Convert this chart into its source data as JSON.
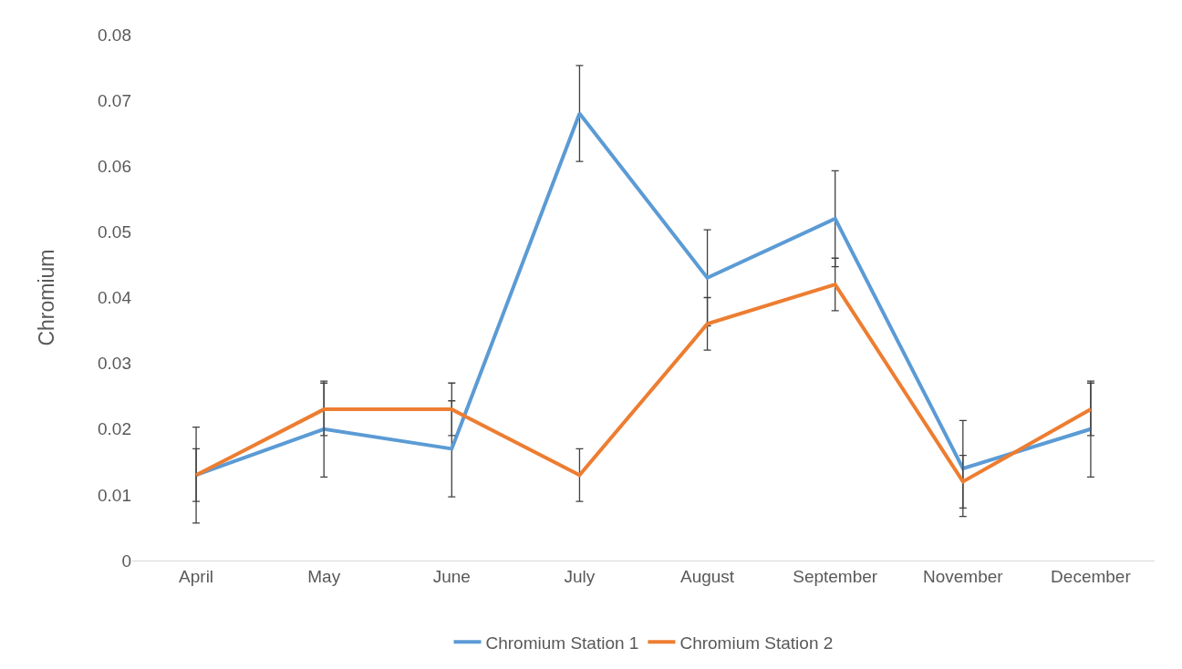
{
  "chart_data": {
    "type": "line",
    "ylabel": "Chromium",
    "categories": [
      "April",
      "May",
      "June",
      "July",
      "August",
      "September",
      "November",
      "December"
    ],
    "series": [
      {
        "name": "Chromium Station 1",
        "color": "#5b9bd5",
        "values": [
          0.013,
          0.02,
          0.017,
          0.068,
          0.043,
          0.052,
          0.014,
          0.02
        ],
        "errors": [
          0.0073,
          0.0073,
          0.0073,
          0.0073,
          0.0073,
          0.0073,
          0.0073,
          0.0073
        ]
      },
      {
        "name": "Chromium Station 2",
        "color": "#ed7d31",
        "values": [
          0.013,
          0.023,
          0.023,
          0.013,
          0.036,
          0.042,
          0.012,
          0.023
        ],
        "errors": [
          0.004,
          0.004,
          0.004,
          0.004,
          0.004,
          0.004,
          0.004,
          0.004
        ]
      }
    ],
    "ylim": [
      0,
      0.08
    ],
    "yticks": [
      0,
      0.01,
      0.02,
      0.03,
      0.04,
      0.05,
      0.06,
      0.07,
      0.08
    ],
    "grid": false,
    "legend": "bottom",
    "marker": "none",
    "line_style": "solid"
  }
}
